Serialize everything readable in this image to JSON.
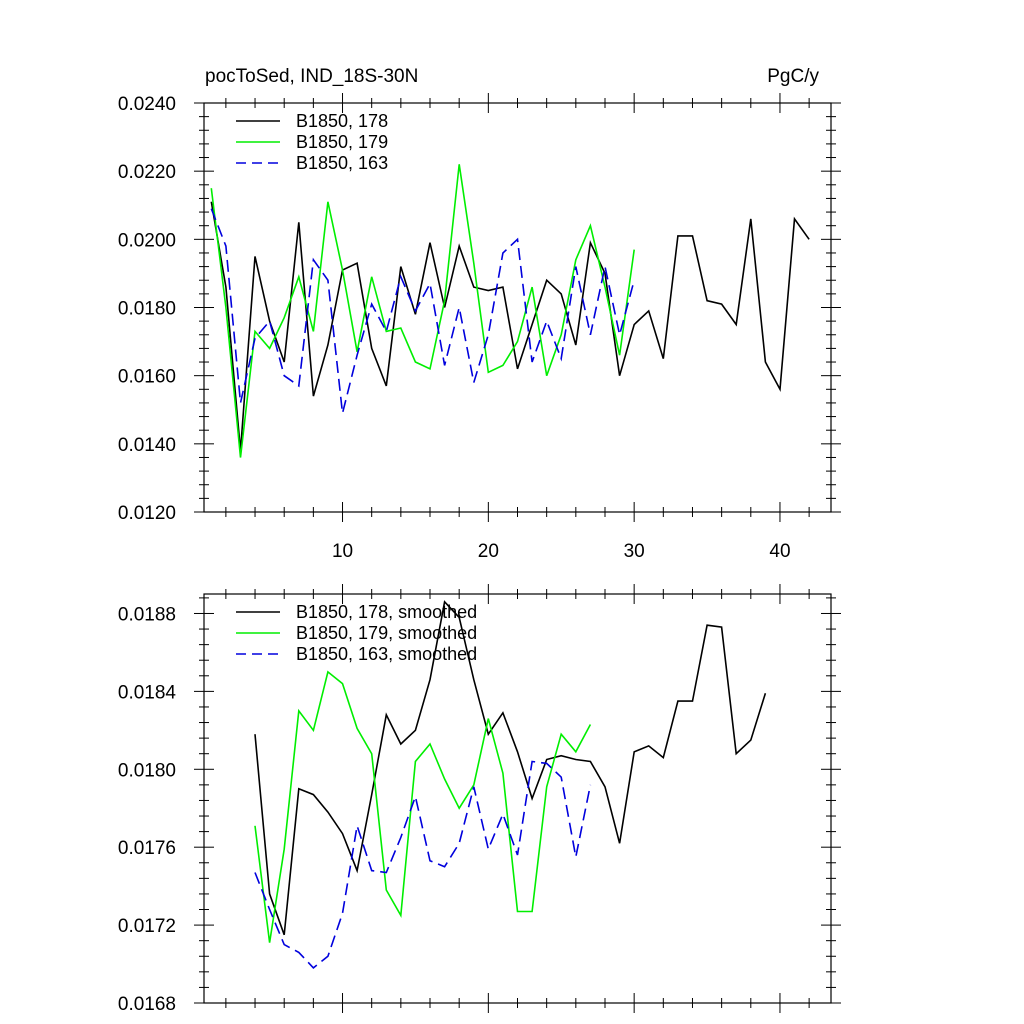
{
  "header": {
    "title_left": "pocToSed, IND_18S-30N",
    "title_right": "PgC/y"
  },
  "colors": {
    "s178": "#000000",
    "s179": "#00ee00",
    "s163": "#0000dd"
  },
  "chart_data": [
    {
      "type": "line",
      "title": "pocToSed, IND_18S-30N",
      "units": "PgC/y",
      "xlim": [
        0.5,
        43.5
      ],
      "ylim": [
        0.012,
        0.024
      ],
      "x_ticks": [
        "10",
        "20",
        "30",
        "40"
      ],
      "y_ticks": [
        "0.0120",
        "0.0140",
        "0.0160",
        "0.0180",
        "0.0200",
        "0.0220",
        "0.0240"
      ],
      "legend_position": "top-left",
      "series": [
        {
          "name": "B1850, 178",
          "color": "#000000",
          "dash": "solid",
          "x_start": 1,
          "values": [
            0.0211,
            0.0186,
            0.0138,
            0.0195,
            0.0176,
            0.0164,
            0.0205,
            0.0154,
            0.0169,
            0.0191,
            0.0193,
            0.0168,
            0.0157,
            0.0192,
            0.0178,
            0.0199,
            0.018,
            0.0198,
            0.0186,
            0.0185,
            0.0186,
            0.0162,
            0.0175,
            0.0188,
            0.0184,
            0.0169,
            0.0199,
            0.019,
            0.016,
            0.0175,
            0.0179,
            0.0165,
            0.0201,
            0.0201,
            0.0182,
            0.0181,
            0.0175,
            0.0206,
            0.0164,
            0.0156,
            0.0206,
            0.02
          ]
        },
        {
          "name": "B1850, 179",
          "color": "#00ee00",
          "dash": "solid",
          "x_start": 1,
          "values": [
            0.0215,
            0.018,
            0.0136,
            0.0173,
            0.0168,
            0.0177,
            0.0189,
            0.0173,
            0.0211,
            0.0191,
            0.0167,
            0.0189,
            0.0173,
            0.0174,
            0.0164,
            0.0162,
            0.0182,
            0.0222,
            0.0193,
            0.0161,
            0.0163,
            0.017,
            0.0186,
            0.016,
            0.0172,
            0.0194,
            0.0204,
            0.0186,
            0.0166,
            0.0197
          ]
        },
        {
          "name": "B1850, 163",
          "color": "#0000dd",
          "dash": "dashed",
          "x_start": 1,
          "values": [
            0.0209,
            0.0198,
            0.0152,
            0.0171,
            0.0176,
            0.016,
            0.0157,
            0.0194,
            0.0188,
            0.0149,
            0.0166,
            0.0181,
            0.0173,
            0.0189,
            0.0179,
            0.0187,
            0.0163,
            0.018,
            0.0158,
            0.0172,
            0.0196,
            0.02,
            0.0164,
            0.0176,
            0.0165,
            0.0192,
            0.0172,
            0.0192,
            0.0172,
            0.0188
          ]
        }
      ]
    },
    {
      "type": "line",
      "xlim": [
        0.5,
        43.5
      ],
      "ylim": [
        0.0168,
        0.0189
      ],
      "y_ticks": [
        "0.0168",
        "0.0172",
        "0.0176",
        "0.0180",
        "0.0184",
        "0.0188"
      ],
      "legend_position": "top-left",
      "series": [
        {
          "name": "B1850, 178, smoothed",
          "color": "#000000",
          "dash": "solid",
          "x_start": 4,
          "values": [
            0.01818,
            0.01736,
            0.01715,
            0.0179,
            0.01787,
            0.01778,
            0.01767,
            0.01748,
            0.01787,
            0.01828,
            0.01813,
            0.0182,
            0.01846,
            0.01886,
            0.01878,
            0.01846,
            0.01818,
            0.01829,
            0.01809,
            0.01785,
            0.01805,
            0.01807,
            0.01805,
            0.01804,
            0.01791,
            0.01762,
            0.01809,
            0.01812,
            0.01806,
            0.01835,
            0.01835,
            0.01874,
            0.01873,
            0.01808,
            0.01815,
            0.01839
          ]
        },
        {
          "name": "B1850, 179, smoothed",
          "color": "#00ee00",
          "dash": "solid",
          "x_start": 4,
          "values": [
            0.01771,
            0.01711,
            0.01759,
            0.0183,
            0.0182,
            0.0185,
            0.01844,
            0.01821,
            0.01808,
            0.01738,
            0.01725,
            0.01804,
            0.01813,
            0.01795,
            0.0178,
            0.01792,
            0.01826,
            0.01798,
            0.01727,
            0.01727,
            0.01791,
            0.01818,
            0.01809,
            0.01823
          ]
        },
        {
          "name": "B1850, 163, smoothed",
          "color": "#0000dd",
          "dash": "dashed",
          "x_start": 4,
          "values": [
            0.01747,
            0.01728,
            0.0171,
            0.01706,
            0.01698,
            0.01704,
            0.01726,
            0.01771,
            0.01748,
            0.01747,
            0.01765,
            0.01786,
            0.01753,
            0.0175,
            0.01762,
            0.01791,
            0.01759,
            0.01777,
            0.01756,
            0.01804,
            0.01803,
            0.01796,
            0.01755,
            0.01792
          ]
        }
      ]
    }
  ]
}
